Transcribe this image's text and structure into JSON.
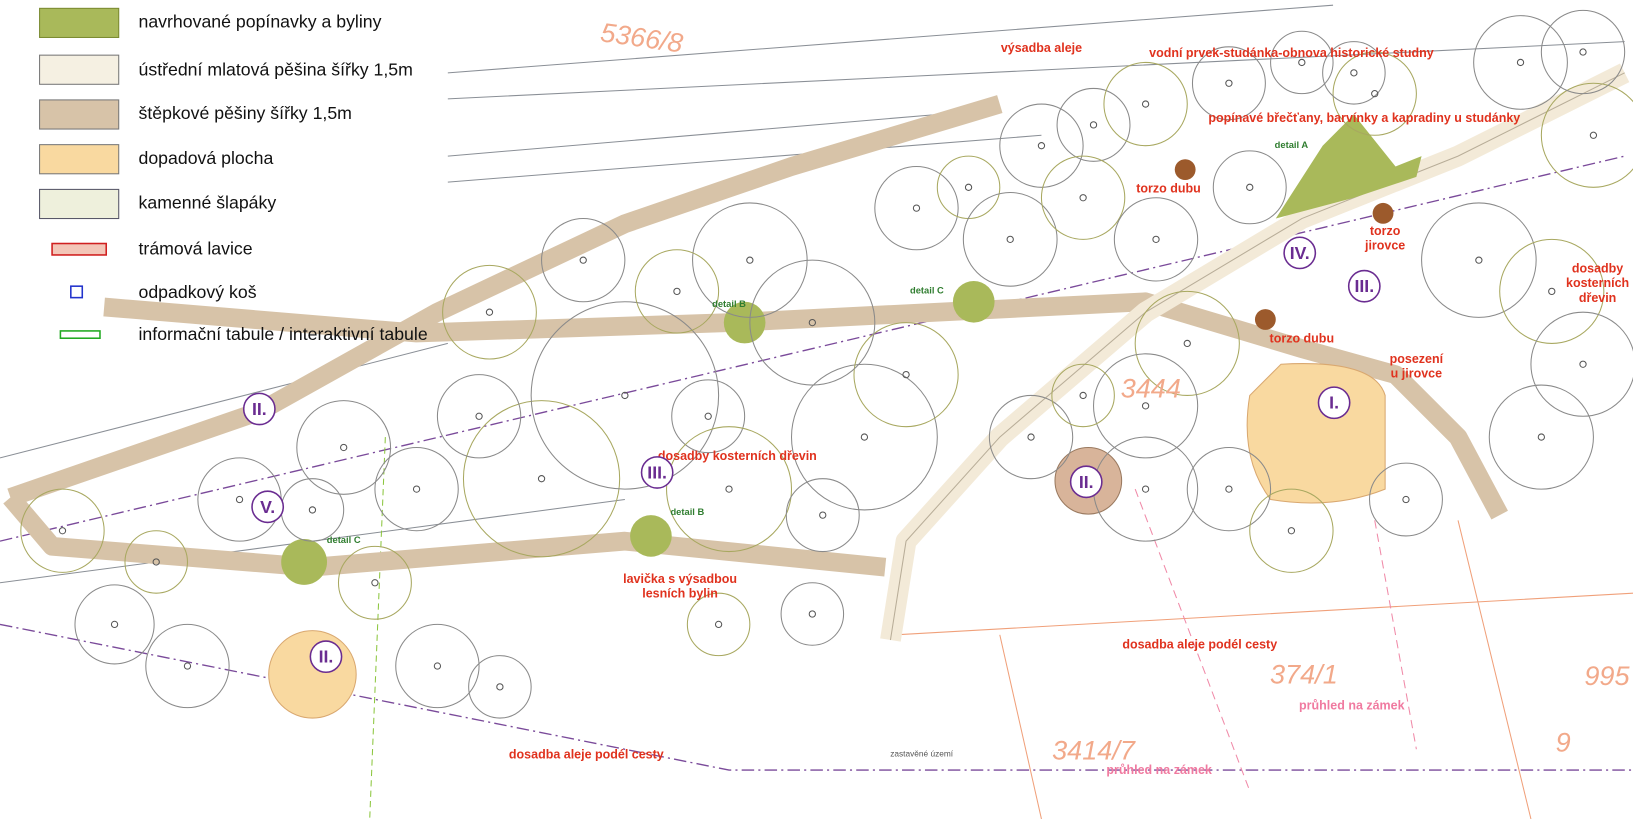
{
  "legend": {
    "items": [
      "navrhované popínavky a byliny",
      "ústřední mlatová pěšina šířky 1,5m",
      "štěpkové pěšiny šířky 1,5m",
      "dopadová plocha",
      "kamenné šlapáky",
      "trámová lavice",
      "odpadkový koš",
      "informační tabule / interaktivní tabule"
    ]
  },
  "annotations": [
    [
      "výsadba aleje"
    ],
    [
      "vodní prvek-studánka-obnova historické studny"
    ],
    [
      "popínavé břečťany, barvínky a kapradiny u studánky"
    ],
    [
      "torzo dubu"
    ],
    [
      "torzo",
      "jirovce"
    ],
    [
      "dosadby",
      "kosterních",
      "dřevin"
    ],
    [
      "torzo dubu"
    ],
    [
      "posezení",
      "u jirovce"
    ],
    [
      "dosadby kosterních dřevin"
    ],
    [
      "lavička s výsadbou",
      "lesních bylin"
    ],
    [
      "dosadba aleje podél cesty"
    ],
    [
      "průhled na zámek"
    ],
    [
      "dosadba aleje podél cesty"
    ],
    [
      "průhled na zámek"
    ]
  ],
  "zone_markers": [
    "II.",
    "III.",
    "IV.",
    "III.",
    "I.",
    "II.",
    "V.",
    "II."
  ],
  "parcel_numbers": [
    "5366/8",
    "3444",
    "374/1",
    "3414/7",
    "995",
    "9"
  ],
  "detail_labels": [
    "detail A",
    "detail B",
    "detail C",
    "detail B",
    "detail C"
  ],
  "other_labels": [
    "zastavěné území"
  ]
}
